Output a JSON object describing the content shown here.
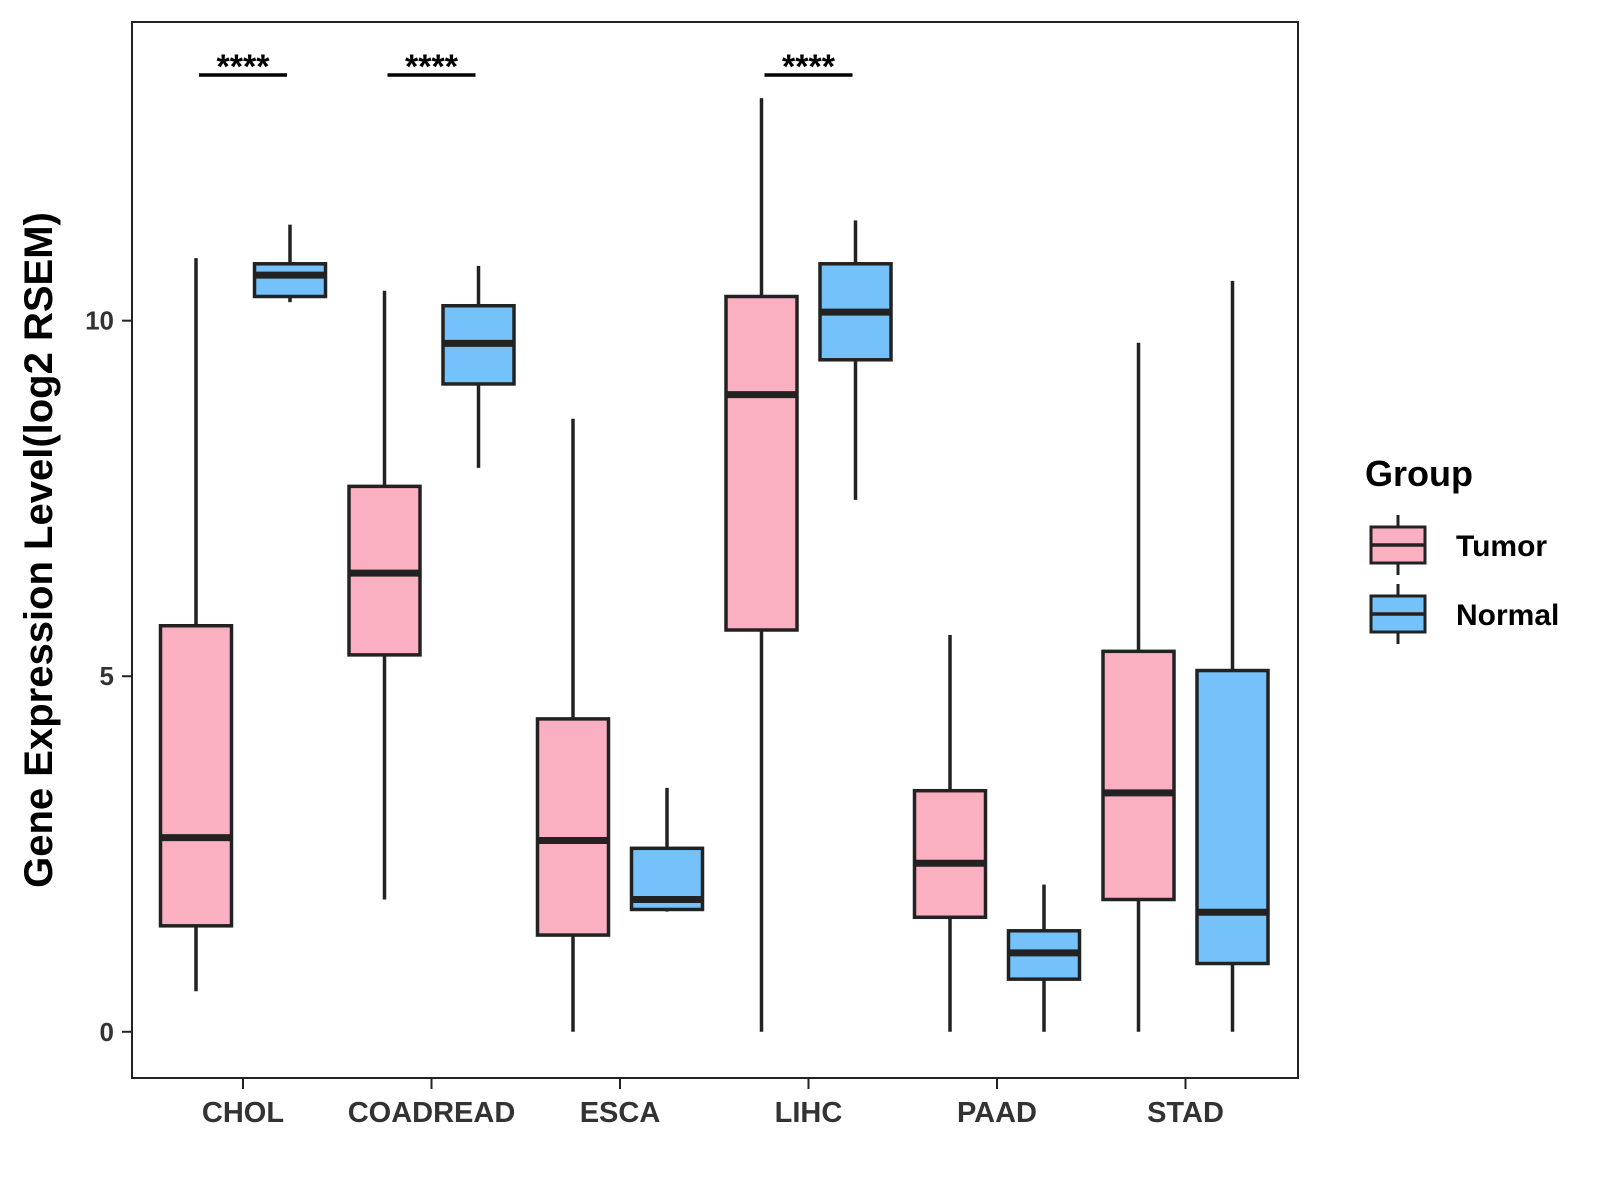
{
  "chart_data": {
    "type": "boxplot",
    "title": "",
    "xlabel": "",
    "ylabel": "Gene Expression Level(log2 RSEM)",
    "ylim": [
      -0.65,
      14.2
    ],
    "yticks": [
      0,
      5,
      10
    ],
    "ytick_labels": [
      "0",
      "5",
      "10"
    ],
    "grid": false,
    "categories": [
      "CHOL",
      "COADREAD",
      "ESCA",
      "LIHC",
      "PAAD",
      "STAD"
    ],
    "legend": {
      "title": "Group",
      "position": "right",
      "entries": [
        {
          "name": "Tumor",
          "color": "#FAB0C0"
        },
        {
          "name": "Normal",
          "color": "#74C2F9"
        }
      ]
    },
    "series": [
      {
        "name": "Tumor",
        "color": "#FAB0C0",
        "boxes": [
          {
            "category": "CHOL",
            "whisker_low": 0.57,
            "q1": 1.49,
            "median": 2.73,
            "q3": 5.71,
            "whisker_high": 10.88
          },
          {
            "category": "COADREAD",
            "whisker_low": 1.86,
            "q1": 5.3,
            "median": 6.45,
            "q3": 7.67,
            "whisker_high": 10.42
          },
          {
            "category": "ESCA",
            "whisker_low": 0.0,
            "q1": 1.36,
            "median": 2.69,
            "q3": 4.4,
            "whisker_high": 8.62
          },
          {
            "category": "LIHC",
            "whisker_low": 0.0,
            "q1": 5.65,
            "median": 8.96,
            "q3": 10.34,
            "whisker_high": 13.13
          },
          {
            "category": "PAAD",
            "whisker_low": 0.0,
            "q1": 1.61,
            "median": 2.37,
            "q3": 3.39,
            "whisker_high": 5.58
          },
          {
            "category": "STAD",
            "whisker_low": 0.0,
            "q1": 1.86,
            "median": 3.36,
            "q3": 5.35,
            "whisker_high": 9.69
          }
        ]
      },
      {
        "name": "Normal",
        "color": "#74C2F9",
        "boxes": [
          {
            "category": "CHOL",
            "whisker_low": 10.26,
            "q1": 10.34,
            "median": 10.64,
            "q3": 10.8,
            "whisker_high": 11.35
          },
          {
            "category": "COADREAD",
            "whisker_low": 7.93,
            "q1": 9.11,
            "median": 9.68,
            "q3": 10.21,
            "whisker_high": 10.77
          },
          {
            "category": "ESCA",
            "whisker_low": 1.69,
            "q1": 1.72,
            "median": 1.86,
            "q3": 2.58,
            "whisker_high": 3.43
          },
          {
            "category": "LIHC",
            "whisker_low": 7.48,
            "q1": 9.45,
            "median": 10.12,
            "q3": 10.8,
            "whisker_high": 11.41
          },
          {
            "category": "PAAD",
            "whisker_low": 0.0,
            "q1": 0.74,
            "median": 1.11,
            "q3": 1.42,
            "whisker_high": 2.07
          },
          {
            "category": "STAD",
            "whisker_low": 0.0,
            "q1": 0.96,
            "median": 1.68,
            "q3": 5.08,
            "whisker_high": 10.56
          }
        ]
      }
    ],
    "annotations": [
      {
        "category": "CHOL",
        "label": "****"
      },
      {
        "category": "COADREAD",
        "label": "****"
      },
      {
        "category": "LIHC",
        "label": "****"
      }
    ]
  }
}
